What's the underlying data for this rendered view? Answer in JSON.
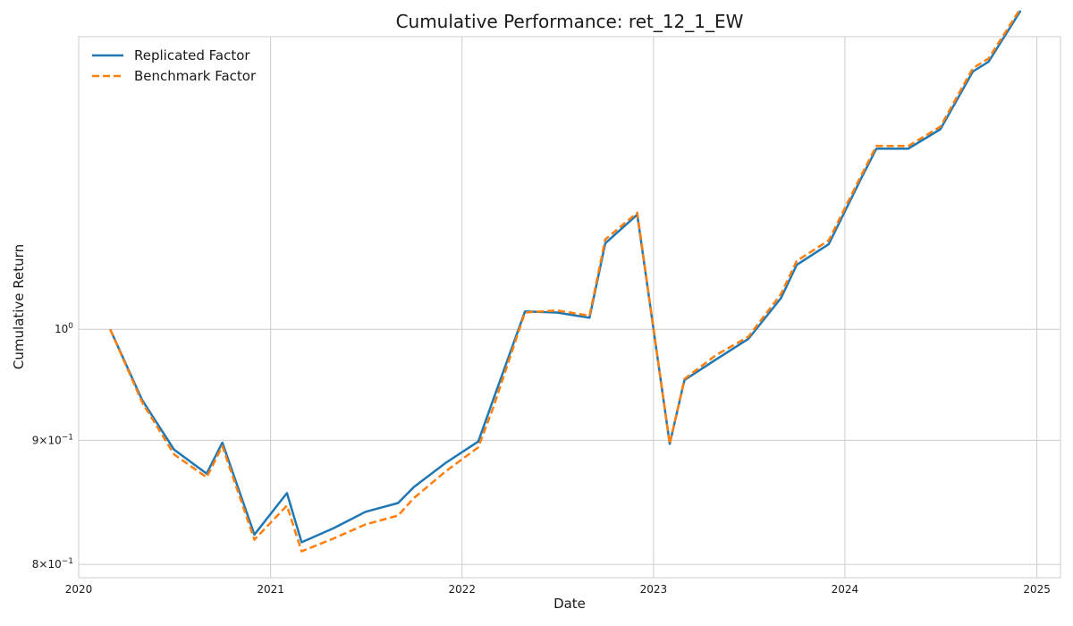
{
  "chart_data": {
    "type": "line",
    "title": "Cumulative Performance: ret_12_1_EW",
    "xlabel": "Date",
    "ylabel": "Cumulative Return",
    "yscale": "log",
    "xlim": [
      "2020-01-01",
      "2025-02-15"
    ],
    "ylim": [
      0.79,
      1.32
    ],
    "grid": true,
    "legend_position": "top-left",
    "x_ticks": [
      "2020",
      "2021",
      "2022",
      "2023",
      "2024",
      "2025"
    ],
    "x_tick_dates": [
      "2020-01-01",
      "2021-01-01",
      "2022-01-01",
      "2023-01-01",
      "2024-01-01",
      "2025-01-01"
    ],
    "y_ticks": [
      {
        "value": 1.0,
        "label": "10^0"
      },
      {
        "value": 0.9,
        "label": "9×10^-1"
      },
      {
        "value": 0.8,
        "label": "8×10^-1"
      }
    ],
    "series": [
      {
        "name": "Replicated Factor",
        "color": "#1f77b4",
        "style": "solid",
        "x": [
          "2020-03-01",
          "2020-05-01",
          "2020-07-01",
          "2020-09-01",
          "2020-10-01",
          "2020-12-01",
          "2021-02-01",
          "2021-03-01",
          "2021-05-01",
          "2021-07-01",
          "2021-09-01",
          "2021-10-01",
          "2021-12-01",
          "2022-02-01",
          "2022-03-01",
          "2022-05-01",
          "2022-07-01",
          "2022-09-01",
          "2022-10-01",
          "2022-12-01",
          "2023-02-01",
          "2023-03-01",
          "2023-05-01",
          "2023-07-01",
          "2023-09-01",
          "2023-10-01",
          "2023-12-01",
          "2024-02-01",
          "2024-03-01",
          "2024-05-01",
          "2024-07-01",
          "2024-09-01",
          "2024-10-01",
          "2024-12-01"
        ],
        "y": [
          1.0,
          0.935,
          0.892,
          0.872,
          0.898,
          0.823,
          0.856,
          0.817,
          0.828,
          0.841,
          0.848,
          0.861,
          0.881,
          0.899,
          0.935,
          1.017,
          1.016,
          1.011,
          1.085,
          1.115,
          0.897,
          0.953,
          0.972,
          0.991,
          1.03,
          1.063,
          1.084,
          1.154,
          1.187,
          1.187,
          1.209,
          1.277,
          1.289,
          1.353
        ]
      },
      {
        "name": "Benchmark Factor",
        "color": "#ff7f0e",
        "style": "dashed",
        "x": [
          "2020-03-01",
          "2020-05-01",
          "2020-07-01",
          "2020-09-01",
          "2020-10-01",
          "2020-12-01",
          "2021-02-01",
          "2021-03-01",
          "2021-05-01",
          "2021-07-01",
          "2021-09-01",
          "2021-10-01",
          "2021-12-01",
          "2022-02-01",
          "2022-03-01",
          "2022-05-01",
          "2022-07-01",
          "2022-09-01",
          "2022-10-01",
          "2022-12-01",
          "2023-02-01",
          "2023-03-01",
          "2023-05-01",
          "2023-07-01",
          "2023-09-01",
          "2023-10-01",
          "2023-12-01",
          "2024-02-01",
          "2024-03-01",
          "2024-05-01",
          "2024-07-01",
          "2024-09-01",
          "2024-10-01",
          "2024-12-01"
        ],
        "y": [
          1.0,
          0.933,
          0.888,
          0.869,
          0.895,
          0.819,
          0.846,
          0.81,
          0.82,
          0.831,
          0.838,
          0.852,
          0.874,
          0.894,
          0.928,
          1.016,
          1.018,
          1.013,
          1.089,
          1.117,
          0.897,
          0.954,
          0.976,
          0.993,
          1.034,
          1.067,
          1.088,
          1.157,
          1.19,
          1.19,
          1.212,
          1.281,
          1.293,
          1.356
        ]
      }
    ]
  }
}
